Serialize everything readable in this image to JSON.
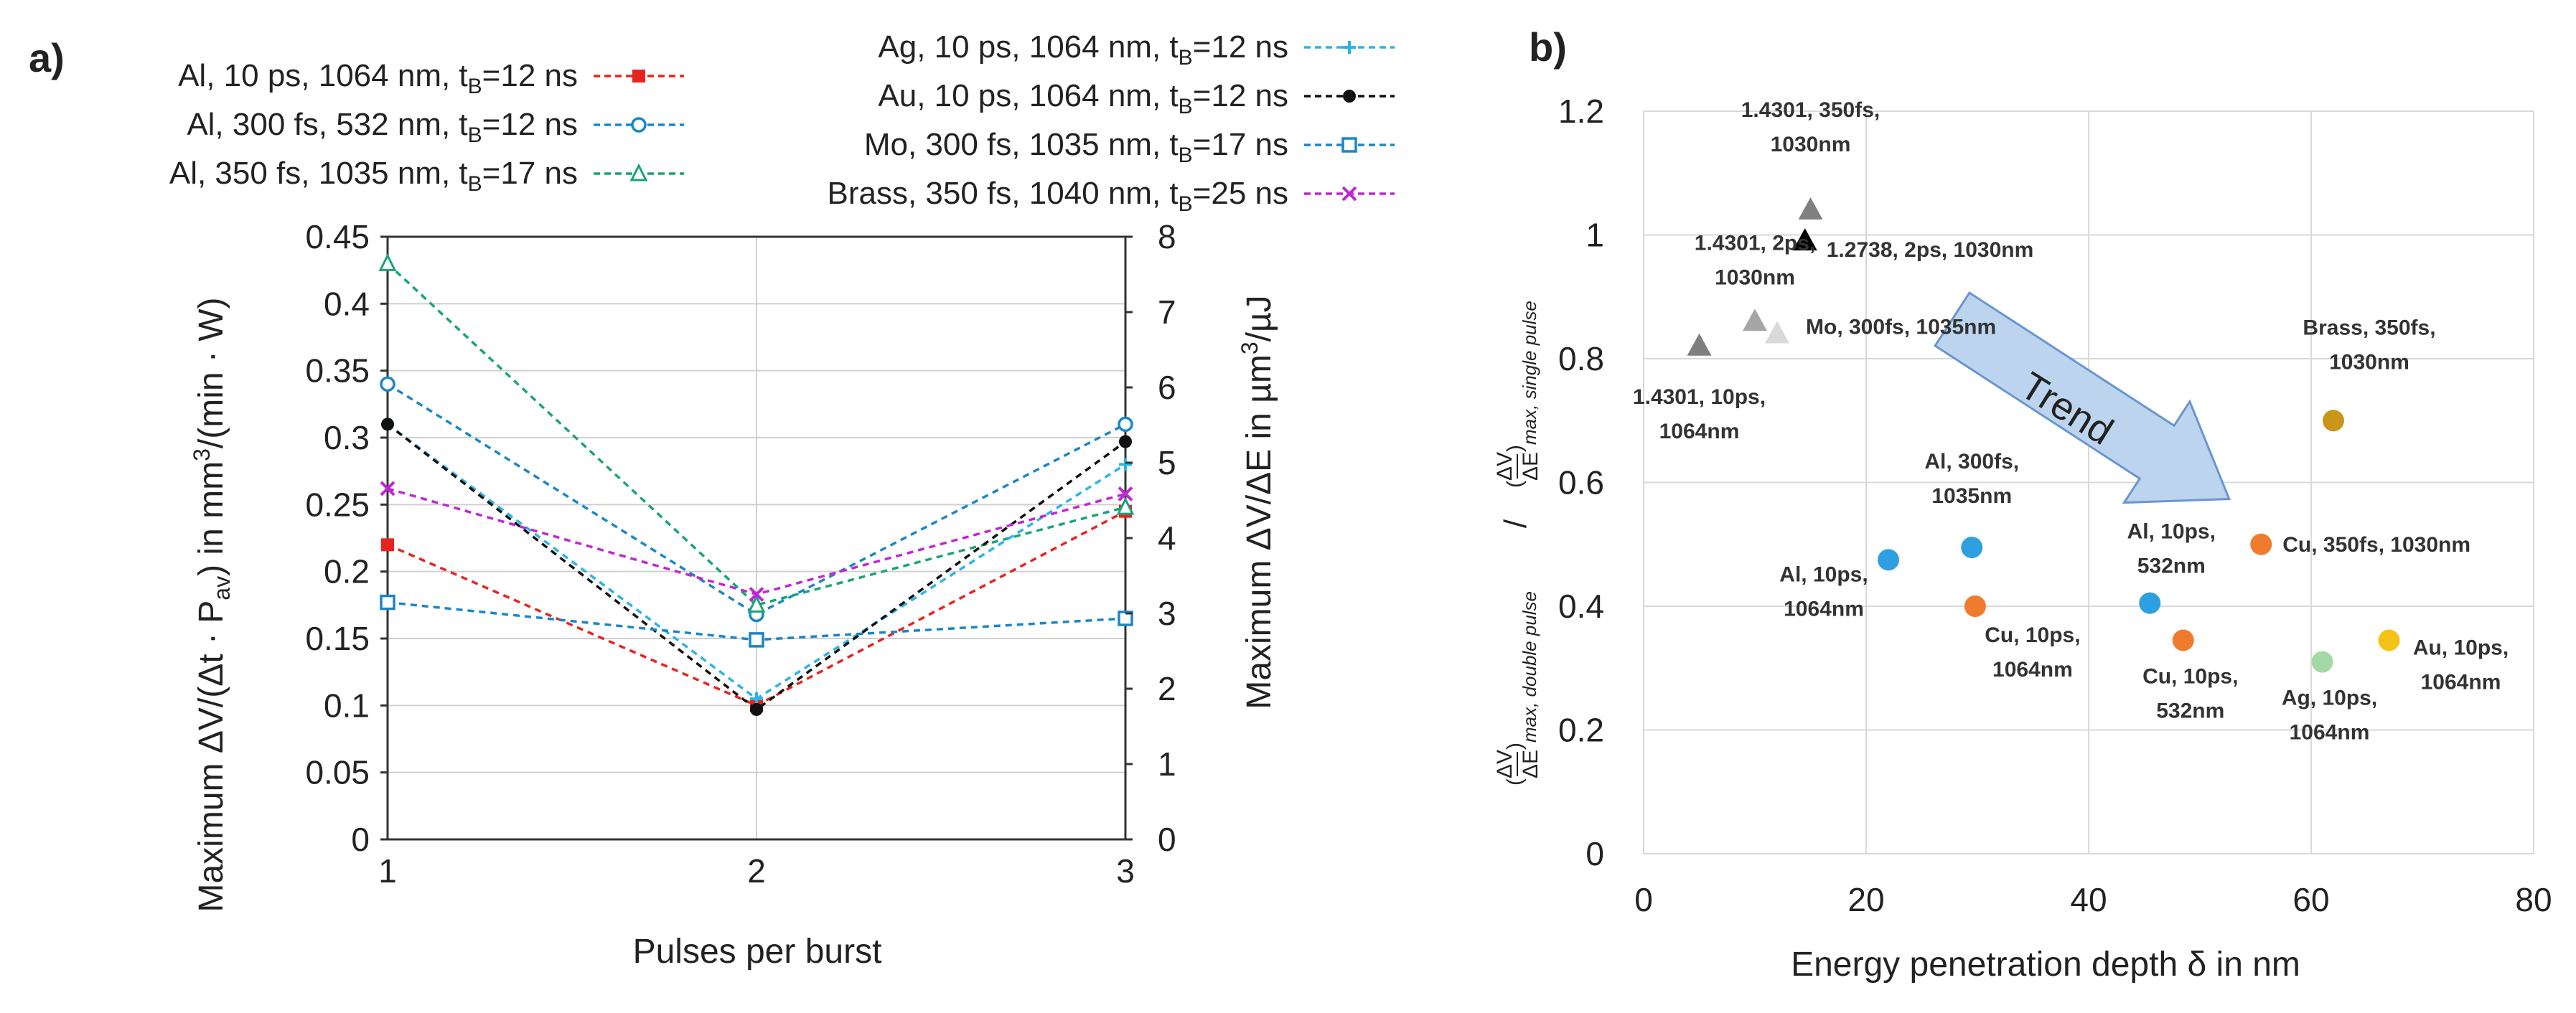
{
  "panels": {
    "a": "a)",
    "b": "b)"
  },
  "chart_data": [
    {
      "type": "line",
      "xlabel": "Pulses per burst",
      "ylabel_left": "Maximum ΔV/(Δt · P_av) in mm³/(min · W)",
      "ylabel_right": "Maximum ΔV/ΔE in µm³/µJ",
      "x": [
        1,
        2,
        3
      ],
      "x_ticks": [
        "1",
        "2",
        "3"
      ],
      "ylim_left": [
        0,
        0.45
      ],
      "y_ticks_left": [
        "0",
        "0.05",
        "0.1",
        "0.15",
        "0.2",
        "0.25",
        "0.3",
        "0.35",
        "0.4",
        "0.45"
      ],
      "ylim_right": [
        0,
        8
      ],
      "y_ticks_right": [
        "0",
        "1",
        "2",
        "3",
        "4",
        "5",
        "6",
        "7",
        "8"
      ],
      "grid": true,
      "legend_placement": "top",
      "series": [
        {
          "name": "Al, 10 ps, 1064 nm, tB=12 ns",
          "name_main": "Al, 10 ps, 1064 nm, t",
          "name_sub": "B",
          "name_tail": "=12 ns",
          "color": "#e8231f",
          "marker": "square-filled",
          "values": [
            0.22,
            0.1,
            0.245
          ]
        },
        {
          "name": "Al, 300 fs, 532 nm, tB=12 ns",
          "name_main": "Al, 300 fs, 532 nm, t",
          "name_sub": "B",
          "name_tail": "=12 ns",
          "color": "#1a86c8",
          "marker": "circle-open",
          "values": [
            0.34,
            0.168,
            0.31
          ]
        },
        {
          "name": "Al, 350 fs, 1035 nm, tB=17 ns",
          "name_main": "Al, 350 fs, 1035 nm, t",
          "name_sub": "B",
          "name_tail": "=17 ns",
          "color": "#1aa37a",
          "marker": "triangle-open",
          "values": [
            0.43,
            0.175,
            0.248
          ]
        },
        {
          "name": "Ag, 10 ps, 1064 nm, tB=12 ns",
          "name_main": "Ag, 10 ps, 1064 nm, t",
          "name_sub": "B",
          "name_tail": "=12 ns",
          "color": "#2bb4e8",
          "marker": "plus",
          "values": [
            0.31,
            0.105,
            0.28
          ]
        },
        {
          "name": "Au, 10 ps, 1064 nm, tB=12 ns",
          "name_main": "Au, 10 ps, 1064 nm, t",
          "name_sub": "B",
          "name_tail": "=12 ns",
          "color": "#111111",
          "marker": "circle-filled",
          "values": [
            0.31,
            0.097,
            0.297
          ]
        },
        {
          "name": "Mo, 300 fs, 1035 nm, tB=17 ns",
          "name_main": "Mo, 300 fs, 1035 nm, t",
          "name_sub": "B",
          "name_tail": "=17 ns",
          "color": "#1a86c8",
          "marker": "square-open",
          "values": [
            0.177,
            0.149,
            0.165
          ]
        },
        {
          "name": "Brass, 350 fs, 1040 nm, tB=25 ns",
          "name_main": "Brass, 350 fs, 1040 nm, t",
          "name_sub": "B",
          "name_tail": "=25 ns",
          "color": "#c026d3",
          "marker": "x",
          "values": [
            0.262,
            0.183,
            0.258
          ]
        }
      ]
    },
    {
      "type": "scatter",
      "xlabel": "Energy penetration depth δ in nm",
      "ylabel": "(ΔV/ΔE)max, double pulse / (ΔV/ΔE)max, single pulse",
      "xlim": [
        0,
        80
      ],
      "x_ticks": [
        "0",
        "20",
        "40",
        "60",
        "80"
      ],
      "ylim": [
        0,
        1.2
      ],
      "y_ticks": [
        "0",
        "0.2",
        "0.4",
        "0.6",
        "0.8",
        "1",
        "1.2"
      ],
      "grid": true,
      "annotation": "Trend",
      "points": [
        {
          "x": 5.0,
          "y": 0.82,
          "shape": "triangle",
          "color": "#7f7f7f",
          "label_lines": [
            "1.4301, 10ps,",
            "1064nm"
          ]
        },
        {
          "x": 10.0,
          "y": 0.86,
          "shape": "triangle",
          "color": "#a6a6a6",
          "label_lines": [
            "1.4301, 2ps,",
            "1030nm"
          ]
        },
        {
          "x": 12.0,
          "y": 0.84,
          "shape": "triangle",
          "color": "#d9d9d9",
          "label_lines": [
            "Mo, 300fs, 1035nm"
          ]
        },
        {
          "x": 14.5,
          "y": 0.99,
          "shape": "triangle",
          "color": "#000000",
          "label_lines": [
            "1.2738, 2ps, 1030nm"
          ]
        },
        {
          "x": 15.0,
          "y": 1.04,
          "shape": "triangle",
          "color": "#808080",
          "label_lines": [
            "1.4301, 350fs,",
            "1030nm"
          ]
        },
        {
          "x": 22.0,
          "y": 0.475,
          "shape": "circle",
          "color": "#2e9fe0",
          "label_lines": [
            "Al, 10ps,",
            "1064nm"
          ]
        },
        {
          "x": 29.5,
          "y": 0.495,
          "shape": "circle",
          "color": "#2e9fe0",
          "label_lines": [
            "Al, 300fs,",
            "1035nm"
          ]
        },
        {
          "x": 29.8,
          "y": 0.4,
          "shape": "circle",
          "color": "#f07b2c",
          "label_lines": [
            "Cu, 10ps,",
            "1064nm"
          ]
        },
        {
          "x": 45.5,
          "y": 0.405,
          "shape": "circle",
          "color": "#2e9fe0",
          "label_lines": [
            "Al, 10ps,",
            "532nm"
          ]
        },
        {
          "x": 48.5,
          "y": 0.345,
          "shape": "circle",
          "color": "#f07b2c",
          "label_lines": [
            "Cu, 10ps,",
            "532nm"
          ]
        },
        {
          "x": 55.5,
          "y": 0.5,
          "shape": "circle",
          "color": "#f07b2c",
          "label_lines": [
            "Cu, 350fs, 1030nm"
          ]
        },
        {
          "x": 61.0,
          "y": 0.31,
          "shape": "circle",
          "color": "#a3d9a5",
          "label_lines": [
            "Ag, 10ps,",
            "1064nm"
          ]
        },
        {
          "x": 62.0,
          "y": 0.7,
          "shape": "circle",
          "color": "#c9961a",
          "label_lines": [
            "Brass, 350fs,",
            "1030nm"
          ]
        },
        {
          "x": 67.0,
          "y": 0.345,
          "shape": "circle",
          "color": "#f5c218",
          "label_lines": [
            "Au, 10ps,",
            "1064nm"
          ]
        }
      ]
    }
  ]
}
